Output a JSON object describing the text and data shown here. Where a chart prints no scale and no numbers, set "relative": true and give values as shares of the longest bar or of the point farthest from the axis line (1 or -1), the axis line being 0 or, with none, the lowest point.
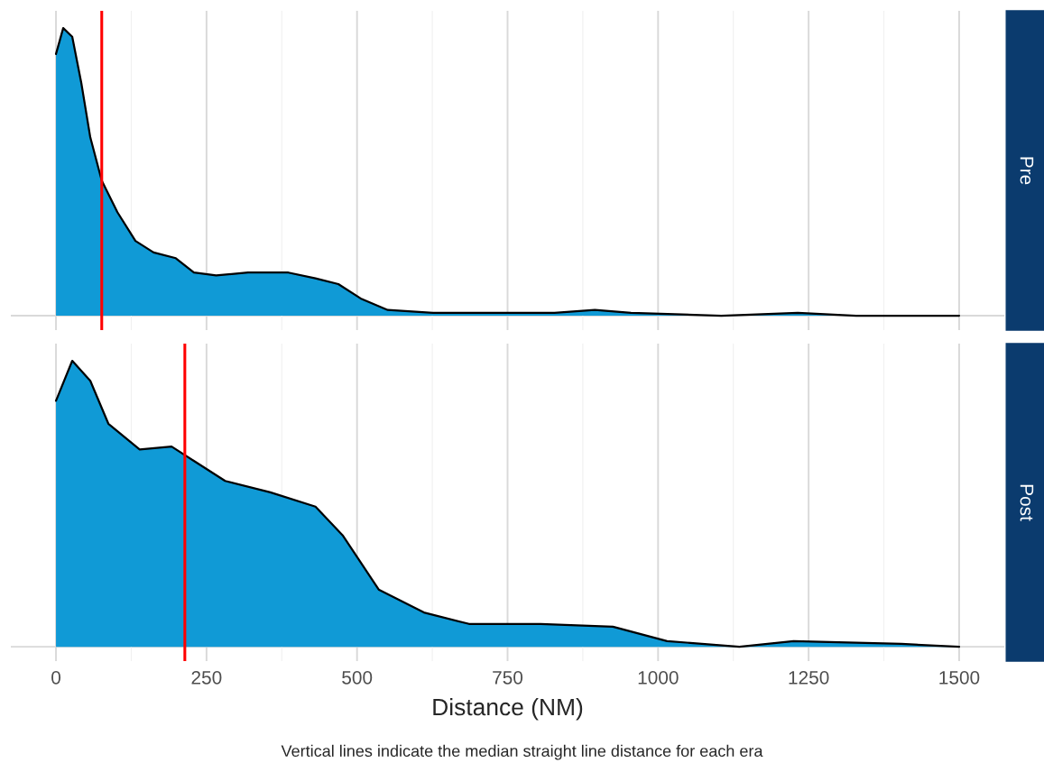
{
  "chart_data": [
    {
      "type": "area",
      "annotations": [
        "Pre"
      ],
      "relative": true,
      "xlim": [
        -75,
        1575
      ],
      "xticks": [
        0,
        250,
        500,
        750,
        1000,
        1250,
        1500
      ],
      "tick_labels": false,
      "grid": "x",
      "series": [
        {
          "color": "#109ad6",
          "x": [
            0,
            12,
            27,
            42,
            57,
            76,
            102,
            132,
            162,
            199,
            229,
            266,
            319,
            386,
            431,
            469,
            506,
            551,
            626,
            746,
            828,
            895,
            955,
            1105,
            1232,
            1329,
            1500
          ],
          "values": [
            0.91,
            1.0,
            0.97,
            0.81,
            0.62,
            0.47,
            0.36,
            0.26,
            0.22,
            0.2,
            0.15,
            0.14,
            0.15,
            0.15,
            0.13,
            0.11,
            0.06,
            0.02,
            0.01,
            0.01,
            0.01,
            0.02,
            0.01,
            0.0,
            0.01,
            0.0,
            0.0
          ]
        }
      ],
      "ref_lines": [
        {
          "axis": "x",
          "value": 76,
          "color": "#ff0000"
        }
      ]
    },
    {
      "type": "area",
      "annotations": [
        "Post",
        "Vertical lines indicate the median straight line distance for each era"
      ],
      "relative": true,
      "xlim": [
        -75,
        1575
      ],
      "xticks": [
        0,
        250,
        500,
        750,
        1000,
        1250,
        1500
      ],
      "tick_labels": "x",
      "grid": "x",
      "xlabel": "Distance (NM)",
      "series": [
        {
          "color": "#109ad6",
          "x": [
            0,
            27,
            57,
            87,
            139,
            192,
            229,
            281,
            356,
            431,
            476,
            536,
            611,
            686,
            805,
            925,
            1015,
            1135,
            1225,
            1404,
            1500
          ],
          "values": [
            0.86,
            1.0,
            0.93,
            0.78,
            0.69,
            0.7,
            0.65,
            0.58,
            0.54,
            0.49,
            0.39,
            0.2,
            0.12,
            0.08,
            0.08,
            0.07,
            0.02,
            0.0,
            0.02,
            0.01,
            0.0
          ]
        }
      ],
      "ref_lines": [
        {
          "axis": "x",
          "value": 214,
          "color": "#ff0000"
        }
      ]
    }
  ]
}
